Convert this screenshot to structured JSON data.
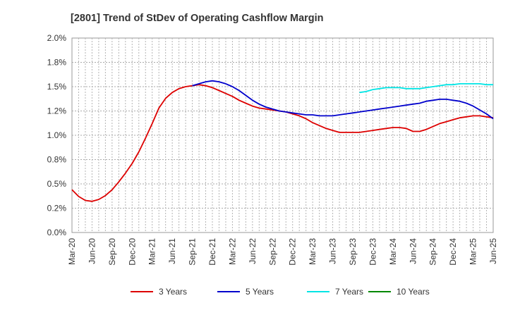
{
  "chart_data": {
    "type": "line",
    "title": "[2801]  Trend of StDev of Operating Cashflow Margin",
    "xlabel": "",
    "ylabel": "",
    "ylim": [
      0,
      2.0
    ],
    "y_ticks": [
      "0.0%",
      "0.2%",
      "0.5%",
      "0.8%",
      "1.0%",
      "1.2%",
      "1.5%",
      "1.8%",
      "2.0%"
    ],
    "x_ticks": [
      "Mar-20",
      "Jun-20",
      "Sep-20",
      "Dec-20",
      "Mar-21",
      "Jun-21",
      "Sep-21",
      "Dec-21",
      "Mar-22",
      "Jun-22",
      "Sep-22",
      "Dec-22",
      "Mar-23",
      "Jun-23",
      "Sep-23",
      "Dec-23",
      "Mar-24",
      "Jun-24",
      "Sep-24",
      "Dec-24",
      "Mar-25",
      "Jun-25"
    ],
    "grid": true,
    "legend_position": "bottom",
    "series": [
      {
        "name": "3 Years",
        "color": "#dd0000",
        "points": [
          [
            0,
            0.44
          ],
          [
            1,
            0.37
          ],
          [
            2,
            0.33
          ],
          [
            3,
            0.32
          ],
          [
            4,
            0.34
          ],
          [
            5,
            0.38
          ],
          [
            6,
            0.44
          ],
          [
            7,
            0.52
          ],
          [
            8,
            0.61
          ],
          [
            9,
            0.71
          ],
          [
            10,
            0.83
          ],
          [
            11,
            0.97
          ],
          [
            12,
            1.12
          ],
          [
            13,
            1.28
          ],
          [
            14,
            1.38
          ],
          [
            15,
            1.44
          ],
          [
            16,
            1.48
          ],
          [
            17,
            1.5
          ],
          [
            18,
            1.51
          ],
          [
            19,
            1.52
          ],
          [
            20,
            1.51
          ],
          [
            21,
            1.49
          ],
          [
            22,
            1.46
          ],
          [
            23,
            1.43
          ],
          [
            24,
            1.4
          ],
          [
            25,
            1.36
          ],
          [
            26,
            1.33
          ],
          [
            27,
            1.3
          ],
          [
            28,
            1.28
          ],
          [
            29,
            1.27
          ],
          [
            30,
            1.26
          ],
          [
            31,
            1.25
          ],
          [
            32,
            1.24
          ],
          [
            33,
            1.22
          ],
          [
            34,
            1.2
          ],
          [
            35,
            1.17
          ],
          [
            36,
            1.13
          ],
          [
            37,
            1.1
          ],
          [
            38,
            1.07
          ],
          [
            39,
            1.05
          ],
          [
            40,
            1.03
          ],
          [
            41,
            1.03
          ],
          [
            42,
            1.03
          ],
          [
            43,
            1.03
          ],
          [
            44,
            1.04
          ],
          [
            45,
            1.05
          ],
          [
            46,
            1.06
          ],
          [
            47,
            1.07
          ],
          [
            48,
            1.08
          ],
          [
            49,
            1.08
          ],
          [
            50,
            1.07
          ],
          [
            51,
            1.04
          ],
          [
            52,
            1.04
          ],
          [
            53,
            1.06
          ],
          [
            54,
            1.09
          ],
          [
            55,
            1.12
          ],
          [
            56,
            1.14
          ],
          [
            57,
            1.16
          ],
          [
            58,
            1.18
          ],
          [
            59,
            1.19
          ],
          [
            60,
            1.2
          ],
          [
            61,
            1.2
          ],
          [
            62,
            1.19
          ],
          [
            63,
            1.18
          ]
        ]
      },
      {
        "name": "5 Years",
        "color": "#0000cc",
        "points": [
          [
            18,
            1.51
          ],
          [
            19,
            1.53
          ],
          [
            20,
            1.55
          ],
          [
            21,
            1.56
          ],
          [
            22,
            1.55
          ],
          [
            23,
            1.53
          ],
          [
            24,
            1.5
          ],
          [
            25,
            1.46
          ],
          [
            26,
            1.41
          ],
          [
            27,
            1.36
          ],
          [
            28,
            1.32
          ],
          [
            29,
            1.29
          ],
          [
            30,
            1.27
          ],
          [
            31,
            1.25
          ],
          [
            32,
            1.24
          ],
          [
            33,
            1.23
          ],
          [
            34,
            1.22
          ],
          [
            35,
            1.21
          ],
          [
            36,
            1.21
          ],
          [
            37,
            1.2
          ],
          [
            38,
            1.2
          ],
          [
            39,
            1.2
          ],
          [
            40,
            1.21
          ],
          [
            41,
            1.22
          ],
          [
            42,
            1.23
          ],
          [
            43,
            1.24
          ],
          [
            44,
            1.25
          ],
          [
            45,
            1.26
          ],
          [
            46,
            1.27
          ],
          [
            47,
            1.28
          ],
          [
            48,
            1.29
          ],
          [
            49,
            1.3
          ],
          [
            50,
            1.31
          ],
          [
            51,
            1.32
          ],
          [
            52,
            1.33
          ],
          [
            53,
            1.35
          ],
          [
            54,
            1.36
          ],
          [
            55,
            1.37
          ],
          [
            56,
            1.37
          ],
          [
            57,
            1.36
          ],
          [
            58,
            1.35
          ],
          [
            59,
            1.33
          ],
          [
            60,
            1.3
          ],
          [
            61,
            1.26
          ],
          [
            62,
            1.22
          ],
          [
            63,
            1.17
          ]
        ]
      },
      {
        "name": "7 Years",
        "color": "#00e5e5",
        "points": [
          [
            43,
            1.44
          ],
          [
            44,
            1.45
          ],
          [
            45,
            1.47
          ],
          [
            46,
            1.48
          ],
          [
            47,
            1.49
          ],
          [
            48,
            1.49
          ],
          [
            49,
            1.49
          ],
          [
            50,
            1.48
          ],
          [
            51,
            1.48
          ],
          [
            52,
            1.48
          ],
          [
            53,
            1.49
          ],
          [
            54,
            1.5
          ],
          [
            55,
            1.51
          ],
          [
            56,
            1.52
          ],
          [
            57,
            1.52
          ],
          [
            58,
            1.53
          ],
          [
            59,
            1.53
          ],
          [
            60,
            1.53
          ],
          [
            61,
            1.53
          ],
          [
            62,
            1.52
          ],
          [
            63,
            1.52
          ]
        ]
      },
      {
        "name": "10 Years",
        "color": "#008800",
        "points": []
      }
    ]
  }
}
